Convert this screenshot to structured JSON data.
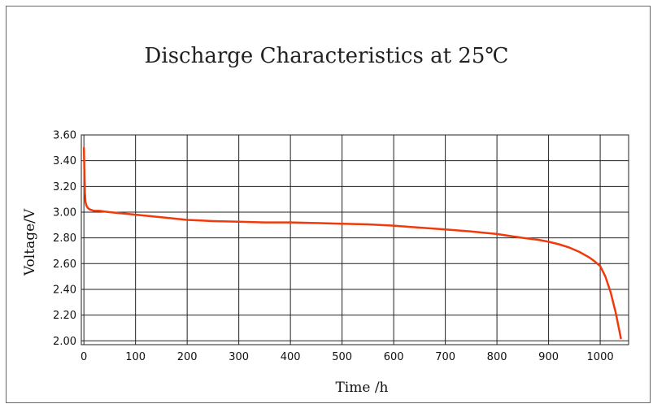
{
  "chart_data": {
    "type": "line",
    "title": "Discharge Characteristics at 25℃",
    "xlabel": "Time /h",
    "ylabel": "Voltage/V",
    "xlim": [
      -5,
      1055
    ],
    "ylim": [
      1.97,
      3.6
    ],
    "x_ticks": [
      0,
      100,
      200,
      300,
      400,
      500,
      600,
      700,
      800,
      900,
      1000
    ],
    "x_tick_labels": [
      "0",
      "100",
      "200",
      "300",
      "400",
      "500",
      "600",
      "700",
      "800",
      "900",
      "1000"
    ],
    "y_ticks": [
      2.0,
      2.2,
      2.4,
      2.6,
      2.8,
      3.0,
      3.2,
      3.4,
      3.6
    ],
    "y_tick_labels": [
      "2.00",
      "2.20",
      "2.40",
      "2.60",
      "2.80",
      "3.00",
      "3.20",
      "3.40",
      "3.60"
    ],
    "grid": true,
    "legend": "none",
    "series": [
      {
        "color": "#f03a0c",
        "x": [
          0,
          1,
          2,
          3,
          5,
          8,
          12,
          20,
          30,
          50,
          100,
          150,
          200,
          250,
          300,
          350,
          400,
          450,
          500,
          550,
          600,
          650,
          700,
          750,
          800,
          850,
          880,
          900,
          920,
          940,
          960,
          980,
          990,
          1000,
          1010,
          1020,
          1030,
          1035,
          1040
        ],
        "y": [
          3.5,
          3.3,
          3.15,
          3.08,
          3.05,
          3.03,
          3.02,
          3.01,
          3.01,
          3.0,
          2.98,
          2.96,
          2.94,
          2.93,
          2.925,
          2.92,
          2.92,
          2.915,
          2.91,
          2.905,
          2.895,
          2.88,
          2.865,
          2.85,
          2.83,
          2.8,
          2.785,
          2.77,
          2.75,
          2.725,
          2.69,
          2.645,
          2.615,
          2.58,
          2.5,
          2.38,
          2.22,
          2.12,
          2.02
        ]
      }
    ]
  }
}
